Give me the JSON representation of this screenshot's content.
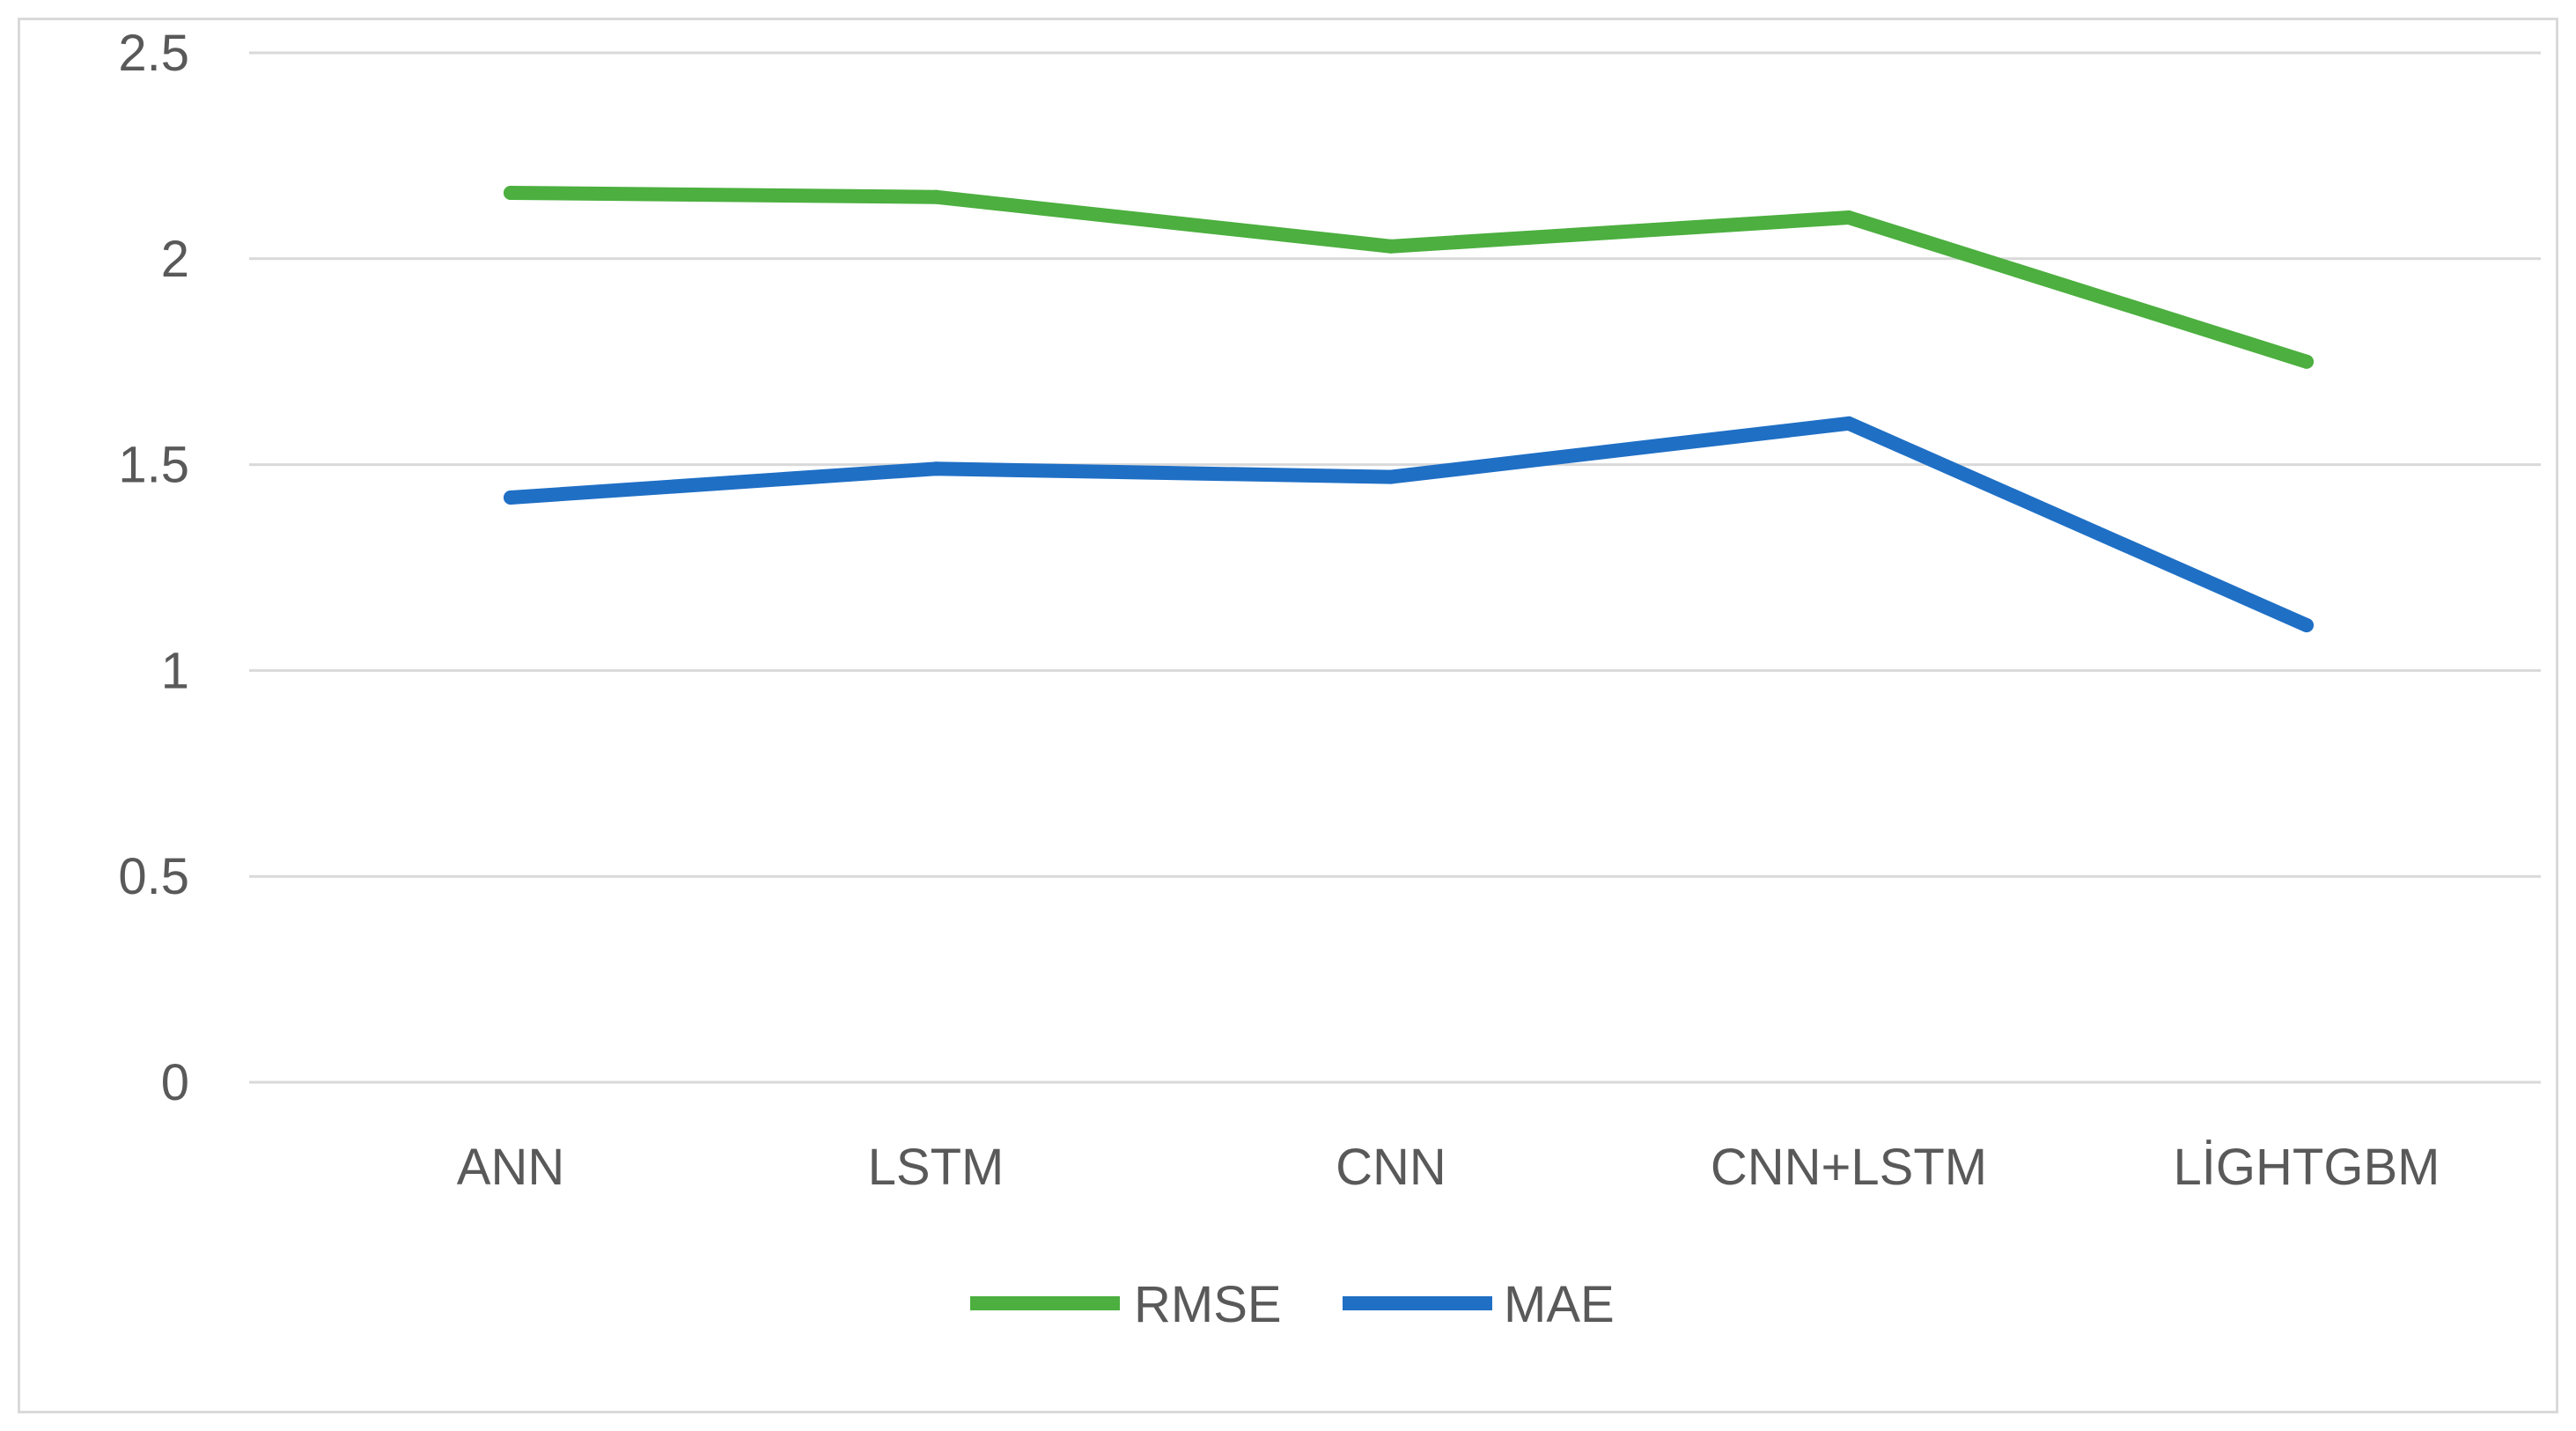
{
  "chart_data": {
    "type": "line",
    "categories": [
      "ANN",
      "LSTM",
      "CNN",
      "CNN+LSTM",
      "LİGHTGBM"
    ],
    "series": [
      {
        "name": "RMSE",
        "color": "#4caf3f",
        "values": [
          2.16,
          2.15,
          2.03,
          2.1,
          1.75
        ]
      },
      {
        "name": "MAE",
        "color": "#1f6fc5",
        "values": [
          1.42,
          1.49,
          1.47,
          1.6,
          1.11
        ]
      }
    ],
    "ylim": [
      0,
      2.5
    ],
    "yticks": [
      "0",
      "0.5",
      "1",
      "1.5",
      "2",
      "2.5"
    ],
    "title": "",
    "xlabel": "",
    "ylabel": "",
    "grid": true,
    "legend": "bottom"
  }
}
